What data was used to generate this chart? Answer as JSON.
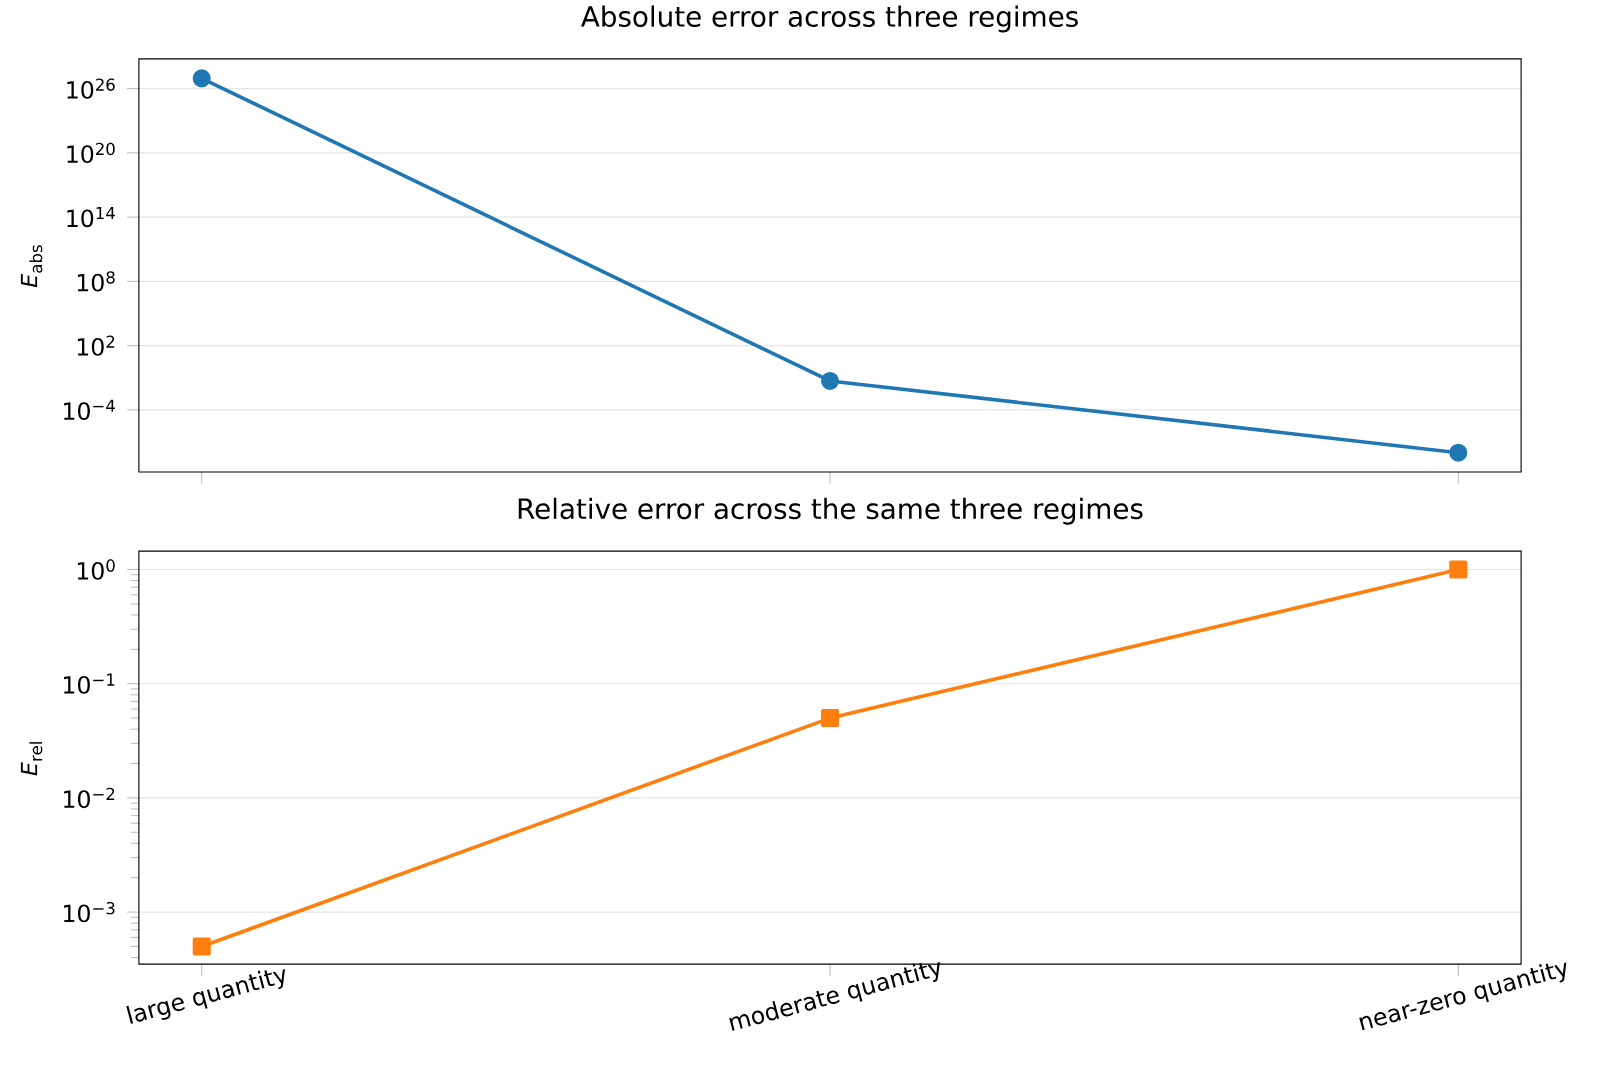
{
  "chart_data": [
    {
      "type": "line",
      "title": "Absolute error across three regimes",
      "ylabel": "*E*$_{abs}$",
      "categories": [
        null,
        null,
        null
      ],
      "log": "y",
      "ylim": [
        1.6e-10,
        6e+28
      ],
      "yticks": [
        {
          "value": 0.0001,
          "label": "10$^{−4}$"
        },
        {
          "value": 100.0,
          "label": "10$^{2}$"
        },
        {
          "value": 100000000.0,
          "label": "10$^{8}$"
        },
        {
          "value": 100000000000000.0,
          "label": "10$^{14}$"
        },
        {
          "value": 1e+20,
          "label": "10$^{20}$"
        },
        {
          "value": 1e+26,
          "label": "10$^{26}$"
        }
      ],
      "grid": "y",
      "tick_labels": "y",
      "marker": "circle",
      "line_style": "solid",
      "series": [
        {
          "color": "#1f77b4",
          "values": [
            9e+26,
            0.05,
            1e-08
          ]
        }
      ]
    },
    {
      "type": "line",
      "title": "Relative error across the same three regimes",
      "ylabel": "*E*$_{rel}$",
      "categories": [
        "large quantity",
        "moderate quantity",
        "near-zero quantity"
      ],
      "log": "y",
      "ylim": [
        0.00035,
        1.45
      ],
      "yticks": [
        {
          "value": 0.001,
          "label": "10$^{−3}$"
        },
        {
          "value": 0.01,
          "label": "10$^{−2}$"
        },
        {
          "value": 0.1,
          "label": "10$^{−1}$"
        },
        {
          "value": 1,
          "label": "10$^{0}$"
        }
      ],
      "grid": "y",
      "marker": "square",
      "line_style": "solid",
      "series": [
        {
          "color": "#ff7f0e",
          "values": [
            0.0005,
            0.05,
            1.0
          ]
        }
      ]
    }
  ]
}
